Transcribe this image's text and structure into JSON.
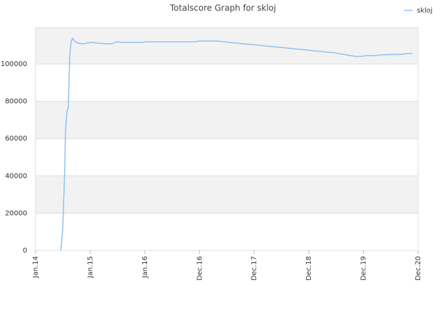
{
  "chart_data": {
    "type": "line",
    "title": "Totalscore Graph for skloj",
    "series": [
      {
        "name": "skloj",
        "color": "#8ec0f0",
        "x": [
          0.459,
          0.472,
          0.497,
          0.523,
          0.536,
          0.548,
          0.574,
          0.599,
          0.612,
          0.625,
          0.65,
          0.676,
          0.727,
          0.778,
          0.88,
          1.007,
          1.135,
          1.326,
          1.39,
          1.492,
          1.581,
          1.964,
          2.027,
          2.92,
          2.984,
          3.328,
          3.685,
          4.068,
          4.45,
          4.96,
          5.47,
          5.85,
          5.98,
          6.04,
          6.23,
          6.3,
          6.68,
          6.81,
          6.9
        ],
        "values": [
          0,
          3000,
          11200,
          33600,
          46600,
          63400,
          74600,
          76500,
          89600,
          103700,
          111900,
          113800,
          111900,
          111200,
          110800,
          111600,
          111200,
          110800,
          110800,
          111900,
          111600,
          111600,
          111900,
          111900,
          112300,
          112300,
          111200,
          110100,
          109000,
          107500,
          106000,
          104100,
          104100,
          104500,
          104500,
          104900,
          105200,
          105600,
          105600
        ]
      }
    ],
    "xlim": [
      0,
      7
    ],
    "xticks": [
      {
        "value": 0,
        "label": "Jan.14"
      },
      {
        "value": 1,
        "label": "Jan.15"
      },
      {
        "value": 2,
        "label": "Jan.16"
      },
      {
        "value": 3,
        "label": "Dec.16"
      },
      {
        "value": 4,
        "label": "Dec.17"
      },
      {
        "value": 5,
        "label": "Dec.18"
      },
      {
        "value": 6,
        "label": "Dec.19"
      },
      {
        "value": 7,
        "label": "Dec.20"
      }
    ],
    "ylim": [
      0,
      119400
    ],
    "yticks": [
      0,
      20000,
      40000,
      60000,
      80000,
      100000
    ],
    "grid": true,
    "legend": "top-right"
  }
}
